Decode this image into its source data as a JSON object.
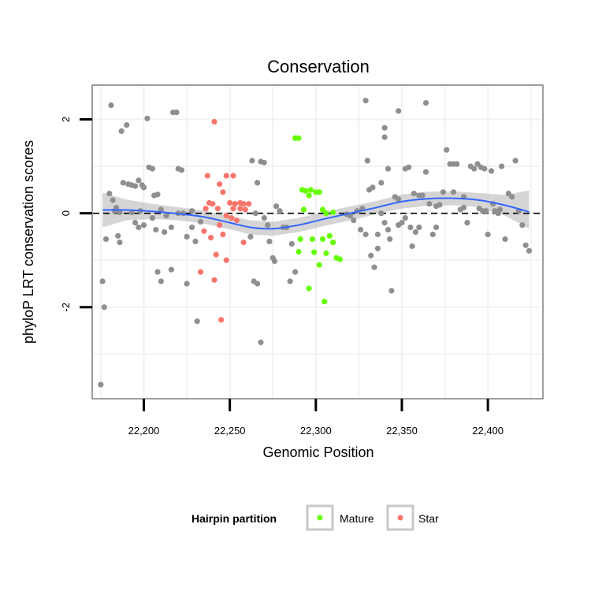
{
  "chart_data": {
    "type": "scatter",
    "title": "Conservation",
    "xlabel": "Genomic Position",
    "ylabel": "phyloP LRT conservation scores",
    "xlim": [
      22170,
      22432
    ],
    "ylim": [
      -3.95,
      2.73
    ],
    "x_ticks": [
      22200,
      22250,
      22300,
      22350,
      22400
    ],
    "x_tick_labels": [
      "22,200",
      "22,250",
      "22,300",
      "22,350",
      "22,400"
    ],
    "y_ticks": [
      -2,
      0,
      2
    ],
    "y_tick_labels": [
      "-2",
      "0",
      "2"
    ],
    "reference_line": {
      "y": 0,
      "style": "dashed",
      "color": "#000000"
    },
    "legend": {
      "title": "Hairpin partition",
      "position": "bottom",
      "entries": [
        {
          "label": "Mature",
          "color": "#66FF00"
        },
        {
          "label": "Star",
          "color": "#F8766D"
        }
      ]
    },
    "colors": {
      "other": "#8F8F8F",
      "mature": "#66FF00",
      "star": "#F8766D",
      "smooth_line": "#3366FF",
      "confidence_band": "#BEBEBE",
      "grid": "#F2F2F2",
      "panel_border": "#7F7F7F"
    },
    "smooth": {
      "x": [
        22176,
        22190,
        22205,
        22220,
        22235,
        22250,
        22262,
        22275,
        22290,
        22305,
        22320,
        22335,
        22350,
        22365,
        22380,
        22395,
        22410,
        22424
      ],
      "y": [
        0.07,
        0.07,
        0.04,
        -0.01,
        -0.08,
        -0.2,
        -0.3,
        -0.33,
        -0.25,
        -0.12,
        0.0,
        0.12,
        0.25,
        0.31,
        0.32,
        0.28,
        0.17,
        0.03
      ],
      "lower": [
        -0.3,
        -0.15,
        -0.12,
        -0.15,
        -0.22,
        -0.34,
        -0.45,
        -0.48,
        -0.4,
        -0.27,
        -0.15,
        -0.02,
        0.1,
        0.16,
        0.17,
        0.13,
        -0.05,
        -0.33
      ],
      "upper": [
        0.44,
        0.29,
        0.2,
        0.13,
        0.06,
        -0.06,
        -0.15,
        -0.18,
        -0.1,
        0.03,
        0.15,
        0.26,
        0.4,
        0.46,
        0.47,
        0.43,
        0.39,
        0.49
      ]
    },
    "series": [
      {
        "name": "Mature",
        "color": "#66FF00",
        "points": [
          [
            22288,
            1.6
          ],
          [
            22290,
            1.6
          ],
          [
            22292,
            0.5
          ],
          [
            22294,
            0.48
          ],
          [
            22296,
            0.38
          ],
          [
            22293,
            0.08
          ],
          [
            22300,
            0.45
          ],
          [
            22302,
            0.45
          ],
          [
            22297,
            0.5
          ],
          [
            22306,
            0.0
          ],
          [
            22310,
            0.02
          ],
          [
            22304,
            0.08
          ],
          [
            22291,
            -0.55
          ],
          [
            22298,
            -0.55
          ],
          [
            22304,
            -0.55
          ],
          [
            22308,
            -0.48
          ],
          [
            22310,
            -0.62
          ],
          [
            22290,
            -0.82
          ],
          [
            22299,
            -0.83
          ],
          [
            22306,
            -0.85
          ],
          [
            22312,
            -0.95
          ],
          [
            22314,
            -0.98
          ],
          [
            22302,
            -1.1
          ],
          [
            22296,
            -1.6
          ],
          [
            22305,
            -1.88
          ]
        ]
      },
      {
        "name": "Star",
        "color": "#F8766D",
        "points": [
          [
            22241,
            1.95
          ],
          [
            22237,
            0.8
          ],
          [
            22248,
            0.8
          ],
          [
            22252,
            0.8
          ],
          [
            22244,
            0.62
          ],
          [
            22246,
            0.45
          ],
          [
            22238,
            0.22
          ],
          [
            22240,
            0.2
          ],
          [
            22236,
            0.1
          ],
          [
            22243,
            0.1
          ],
          [
            22250,
            0.22
          ],
          [
            22253,
            0.2
          ],
          [
            22256,
            0.22
          ],
          [
            22258,
            0.2
          ],
          [
            22261,
            0.2
          ],
          [
            22252,
            0.1
          ],
          [
            22256,
            0.1
          ],
          [
            22259,
            0.08
          ],
          [
            22248,
            -0.05
          ],
          [
            22251,
            -0.1
          ],
          [
            22254,
            -0.15
          ],
          [
            22244,
            -0.25
          ],
          [
            22235,
            -0.38
          ],
          [
            22246,
            -0.45
          ],
          [
            22239,
            -0.52
          ],
          [
            22258,
            -0.62
          ],
          [
            22242,
            -0.88
          ],
          [
            22248,
            -1.0
          ],
          [
            22233,
            -1.25
          ],
          [
            22241,
            -1.42
          ],
          [
            22245,
            -2.27
          ]
        ]
      },
      {
        "name": "Other",
        "color": "#8F8F8F",
        "points": [
          [
            22175,
            -3.65
          ],
          [
            22176,
            -1.45
          ],
          [
            22177,
            -2.0
          ],
          [
            22178,
            -0.55
          ],
          [
            22180,
            0.42
          ],
          [
            22181,
            2.3
          ],
          [
            22182,
            0.28
          ],
          [
            22184,
            0.12
          ],
          [
            22185,
            -0.48
          ],
          [
            22186,
            -0.62
          ],
          [
            22187,
            1.75
          ],
          [
            22190,
            1.88
          ],
          [
            22188,
            0.65
          ],
          [
            22191,
            0.62
          ],
          [
            22193,
            0.6
          ],
          [
            22195,
            0.58
          ],
          [
            22197,
            0.7
          ],
          [
            22199,
            0.6
          ],
          [
            22200,
            0.55
          ],
          [
            22203,
            0.98
          ],
          [
            22205,
            0.95
          ],
          [
            22206,
            0.38
          ],
          [
            22208,
            0.4
          ],
          [
            22202,
            2.02
          ],
          [
            22195,
            -0.2
          ],
          [
            22197,
            -0.3
          ],
          [
            22200,
            -0.25
          ],
          [
            22205,
            -0.1
          ],
          [
            22207,
            -0.35
          ],
          [
            22212,
            -0.4
          ],
          [
            22208,
            -1.25
          ],
          [
            22210,
            -1.45
          ],
          [
            22213,
            -0.05
          ],
          [
            22216,
            -0.3
          ],
          [
            22216,
            -1.2
          ],
          [
            22217,
            2.15
          ],
          [
            22219,
            2.15
          ],
          [
            22220,
            0.95
          ],
          [
            22222,
            0.92
          ],
          [
            22223,
            0.0
          ],
          [
            22225,
            -0.5
          ],
          [
            22225,
            -1.5
          ],
          [
            22228,
            -0.3
          ],
          [
            22230,
            -0.6
          ],
          [
            22231,
            -2.3
          ],
          [
            22233,
            -0.18
          ],
          [
            22186,
            0.02
          ],
          [
            22183,
            0.05
          ],
          [
            22193,
            0.02
          ],
          [
            22198,
            0.05
          ],
          [
            22210,
            0.08
          ],
          [
            22220,
            0.0
          ],
          [
            22228,
            0.05
          ],
          [
            22263,
            1.12
          ],
          [
            22266,
            0.65
          ],
          [
            22268,
            1.1
          ],
          [
            22270,
            1.08
          ],
          [
            22265,
            0.0
          ],
          [
            22262,
            -0.5
          ],
          [
            22264,
            -1.45
          ],
          [
            22266,
            -1.5
          ],
          [
            22268,
            -2.75
          ],
          [
            22270,
            -0.1
          ],
          [
            22272,
            -0.25
          ],
          [
            22273,
            -0.6
          ],
          [
            22275,
            -0.95
          ],
          [
            22276,
            -1.02
          ],
          [
            22277,
            0.15
          ],
          [
            22279,
            0.05
          ],
          [
            22281,
            -0.3
          ],
          [
            22283,
            -0.3
          ],
          [
            22285,
            -1.45
          ],
          [
            22286,
            -0.65
          ],
          [
            22288,
            -1.25
          ],
          [
            22318,
            -0.02
          ],
          [
            22320,
            -0.05
          ],
          [
            22322,
            -0.15
          ],
          [
            22324,
            0.05
          ],
          [
            22327,
            0.1
          ],
          [
            22329,
            2.4
          ],
          [
            22330,
            1.12
          ],
          [
            22331,
            0.5
          ],
          [
            22326,
            -0.35
          ],
          [
            22329,
            -0.45
          ],
          [
            22332,
            -0.9
          ],
          [
            22334,
            -1.15
          ],
          [
            22336,
            -0.75
          ],
          [
            22336,
            -0.45
          ],
          [
            22338,
            0.65
          ],
          [
            22340,
            1.82
          ],
          [
            22340,
            1.62
          ],
          [
            22342,
            0.95
          ],
          [
            22342,
            -0.35
          ],
          [
            22343,
            -0.55
          ],
          [
            22344,
            -1.65
          ],
          [
            22346,
            0.35
          ],
          [
            22348,
            0.3
          ],
          [
            22348,
            2.18
          ],
          [
            22350,
            -0.2
          ],
          [
            22352,
            0.95
          ],
          [
            22354,
            0.98
          ],
          [
            22355,
            -0.3
          ],
          [
            22357,
            0.42
          ],
          [
            22358,
            -0.4
          ],
          [
            22360,
            0.38
          ],
          [
            22362,
            0.38
          ],
          [
            22364,
            2.35
          ],
          [
            22364,
            0.88
          ],
          [
            22366,
            0.2
          ],
          [
            22368,
            -0.45
          ],
          [
            22370,
            0.15
          ],
          [
            22372,
            0.18
          ],
          [
            22374,
            0.45
          ],
          [
            22376,
            1.35
          ],
          [
            22378,
            1.05
          ],
          [
            22380,
            1.05
          ],
          [
            22382,
            1.05
          ],
          [
            22384,
            0.08
          ],
          [
            22386,
            0.12
          ],
          [
            22388,
            -0.2
          ],
          [
            22390,
            1.0
          ],
          [
            22392,
            0.95
          ],
          [
            22394,
            1.05
          ],
          [
            22396,
            0.98
          ],
          [
            22398,
            0.95
          ],
          [
            22399,
            0.05
          ],
          [
            22400,
            -0.45
          ],
          [
            22402,
            0.9
          ],
          [
            22404,
            0.05
          ],
          [
            22406,
            0.0
          ],
          [
            22408,
            1.0
          ],
          [
            22410,
            -0.55
          ],
          [
            22412,
            0.42
          ],
          [
            22414,
            0.35
          ],
          [
            22416,
            1.12
          ],
          [
            22418,
            0.05
          ],
          [
            22420,
            -0.25
          ],
          [
            22422,
            -0.68
          ],
          [
            22424,
            -0.8
          ],
          [
            22395,
            0.1
          ],
          [
            22397,
            0.05
          ],
          [
            22403,
            0.2
          ],
          [
            22407,
            0.08
          ],
          [
            22386,
            0.35
          ],
          [
            22380,
            0.45
          ],
          [
            22370,
            -0.3
          ],
          [
            22360,
            -0.3
          ],
          [
            22352,
            -0.1
          ],
          [
            22356,
            -0.7
          ],
          [
            22348,
            -0.25
          ],
          [
            22340,
            -0.2
          ],
          [
            22338,
            0.0
          ],
          [
            22333,
            0.55
          ]
        ]
      }
    ]
  }
}
